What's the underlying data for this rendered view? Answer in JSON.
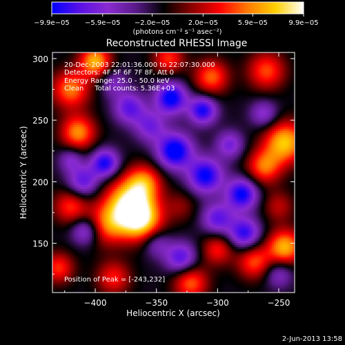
{
  "chart_data": {
    "type": "heatmap",
    "title": "Reconstructed RHESSI Image",
    "xlabel": "Heliocentric X (arcsec)",
    "ylabel": "Heliocentric Y (arcsec)",
    "xlim": [
      -435,
      -237
    ],
    "ylim": [
      110,
      305
    ],
    "x_ticks": [
      -400,
      -350,
      -300,
      -250
    ],
    "x_tick_labels": [
      "−400",
      "−350",
      "−300",
      "−250"
    ],
    "y_ticks": [
      150,
      200,
      250,
      300
    ],
    "y_tick_labels": [
      "150",
      "200",
      "250",
      "300"
    ],
    "colorbar": {
      "range": [
        -9.9e-05,
        9.9e-05
      ],
      "ticks": [
        -9.9e-05,
        -5.9e-05,
        -2e-05,
        2e-05,
        5.9e-05,
        9.9e-05
      ],
      "tick_labels": [
        "−9.9e−05",
        "−5.9e−05",
        "−2.0e−05",
        "2.0e−05",
        "5.9e−05",
        "9.9e−05"
      ],
      "units": "(photons cm⁻² s⁻¹ asec⁻²)",
      "colors": [
        "#0000ff",
        "#5a10e6",
        "#8a2bd0",
        "#5a1a8a",
        "#000000",
        "#8a0000",
        "#ff0000",
        "#ff7a00",
        "#ffd000",
        "#ffffff"
      ]
    },
    "annotations": [
      "20-Dec-2003 22:01:36.000 to 22:07:30.000",
      "Detectors: 4F 5F 6F 7F 8F, Att 0",
      "Energy Range: 25.0 - 50.0 keV",
      "Clean     Total counts: 5.36E+03"
    ],
    "peak_label": "Position of Peak = [-243,232]",
    "peak_position": [
      -243,
      232
    ],
    "date_stamp": "2-Jun-2013 13:58",
    "blobs": [
      {
        "x": -372,
        "y": 183,
        "amp": 9.9e-05,
        "w": 14
      },
      {
        "x": -362,
        "y": 168,
        "amp": 8.5e-05,
        "w": 12
      },
      {
        "x": -390,
        "y": 165,
        "amp": 6e-05,
        "w": 12
      },
      {
        "x": -360,
        "y": 200,
        "amp": 6e-05,
        "w": 10
      },
      {
        "x": -414,
        "y": 240,
        "amp": 7.5e-05,
        "w": 10
      },
      {
        "x": -420,
        "y": 275,
        "amp": 7e-05,
        "w": 11
      },
      {
        "x": -400,
        "y": 298,
        "amp": 8.5e-05,
        "w": 9
      },
      {
        "x": -420,
        "y": 180,
        "amp": 5.5e-05,
        "w": 10
      },
      {
        "x": -245,
        "y": 232,
        "amp": 9e-05,
        "w": 12
      },
      {
        "x": -262,
        "y": 212,
        "amp": 6.5e-05,
        "w": 10
      },
      {
        "x": -245,
        "y": 147,
        "amp": 8.5e-05,
        "w": 10
      },
      {
        "x": -270,
        "y": 135,
        "amp": 6e-05,
        "w": 10
      },
      {
        "x": -300,
        "y": 145,
        "amp": 5e-05,
        "w": 9
      },
      {
        "x": -322,
        "y": 118,
        "amp": 6.5e-05,
        "w": 10
      },
      {
        "x": -305,
        "y": 285,
        "amp": 6.5e-05,
        "w": 10
      },
      {
        "x": -260,
        "y": 290,
        "amp": 6e-05,
        "w": 11
      },
      {
        "x": -340,
        "y": 300,
        "amp": 5.5e-05,
        "w": 9
      },
      {
        "x": -385,
        "y": 122,
        "amp": 5e-05,
        "w": 10
      },
      {
        "x": -430,
        "y": 130,
        "amp": 5.5e-05,
        "w": 9
      },
      {
        "x": -330,
        "y": 180,
        "amp": 2.5e-05,
        "w": 9
      },
      {
        "x": -250,
        "y": 180,
        "amp": 3.5e-05,
        "w": 9
      },
      {
        "x": -338,
        "y": 268,
        "amp": -9e-05,
        "w": 9
      },
      {
        "x": -312,
        "y": 258,
        "amp": -8e-05,
        "w": 8
      },
      {
        "x": -335,
        "y": 225,
        "amp": -9.5e-05,
        "w": 10
      },
      {
        "x": -310,
        "y": 205,
        "amp": -8.5e-05,
        "w": 10
      },
      {
        "x": -280,
        "y": 190,
        "amp": -8.5e-05,
        "w": 9
      },
      {
        "x": -278,
        "y": 158,
        "amp": -7.5e-05,
        "w": 9
      },
      {
        "x": -300,
        "y": 170,
        "amp": -6e-05,
        "w": 9
      },
      {
        "x": -392,
        "y": 215,
        "amp": -8e-05,
        "w": 8
      },
      {
        "x": -410,
        "y": 200,
        "amp": -6e-05,
        "w": 9
      },
      {
        "x": -408,
        "y": 160,
        "amp": -5.5e-05,
        "w": 8
      },
      {
        "x": -330,
        "y": 138,
        "amp": -6.5e-05,
        "w": 9
      },
      {
        "x": -350,
        "y": 150,
        "amp": -4e-05,
        "w": 8
      },
      {
        "x": -372,
        "y": 260,
        "amp": -6e-05,
        "w": 9
      },
      {
        "x": -355,
        "y": 245,
        "amp": -5e-05,
        "w": 9
      },
      {
        "x": -290,
        "y": 230,
        "amp": -5e-05,
        "w": 8
      },
      {
        "x": -262,
        "y": 255,
        "amp": -4.5e-05,
        "w": 8
      },
      {
        "x": -420,
        "y": 218,
        "amp": -4e-05,
        "w": 7
      },
      {
        "x": -385,
        "y": 280,
        "amp": -3.5e-05,
        "w": 8
      },
      {
        "x": -250,
        "y": 125,
        "amp": -4e-05,
        "w": 8
      }
    ]
  }
}
